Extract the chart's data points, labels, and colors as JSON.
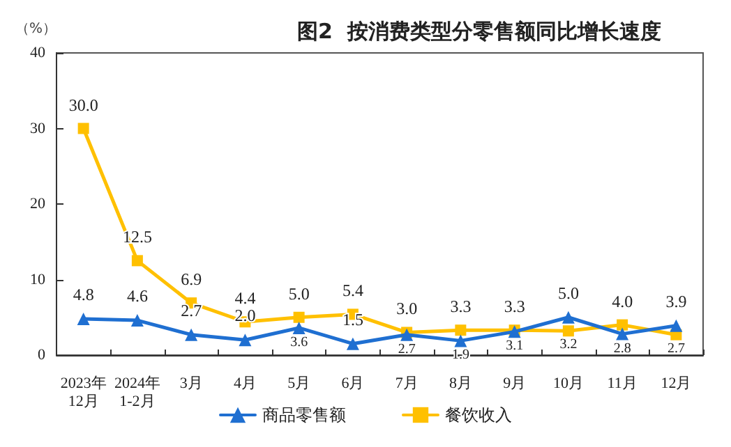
{
  "chart_data": {
    "type": "line",
    "title": "图2  按消费类型分零售额同比增长速度",
    "ylabel": "（%）",
    "categories": [
      "2023年\n12月",
      "2024年\n1-2月",
      "3月",
      "4月",
      "5月",
      "6月",
      "7月",
      "8月",
      "9月",
      "10月",
      "11月",
      "12月"
    ],
    "series": [
      {
        "name": "商品零售额",
        "color": "#1f6fd1",
        "marker": "triangle",
        "values": [
          4.8,
          4.6,
          2.7,
          2.0,
          3.6,
          1.5,
          2.7,
          1.9,
          3.1,
          5.0,
          2.8,
          3.9
        ],
        "value_labels": [
          "4.8",
          "4.6",
          "2.7",
          "2.0",
          "3.6",
          "1.5",
          "2.7",
          "1.9",
          "3.1",
          "5.0",
          "2.8",
          "3.9"
        ]
      },
      {
        "name": "餐饮收入",
        "color": "#ffc000",
        "marker": "square",
        "values": [
          30.0,
          12.5,
          6.9,
          4.4,
          5.0,
          5.4,
          3.0,
          3.3,
          3.3,
          3.2,
          4.0,
          2.7
        ],
        "value_labels": [
          "30.0",
          "12.5",
          "6.9",
          "4.4",
          "5.0",
          "5.4",
          "3.0",
          "3.3",
          "3.3",
          "3.2",
          "4.0",
          "2.7"
        ]
      }
    ],
    "ylim": [
      0,
      40
    ],
    "yticks": [
      0,
      10,
      20,
      30,
      40
    ],
    "grid": false,
    "legend": "bottom",
    "line_style": "solid"
  }
}
